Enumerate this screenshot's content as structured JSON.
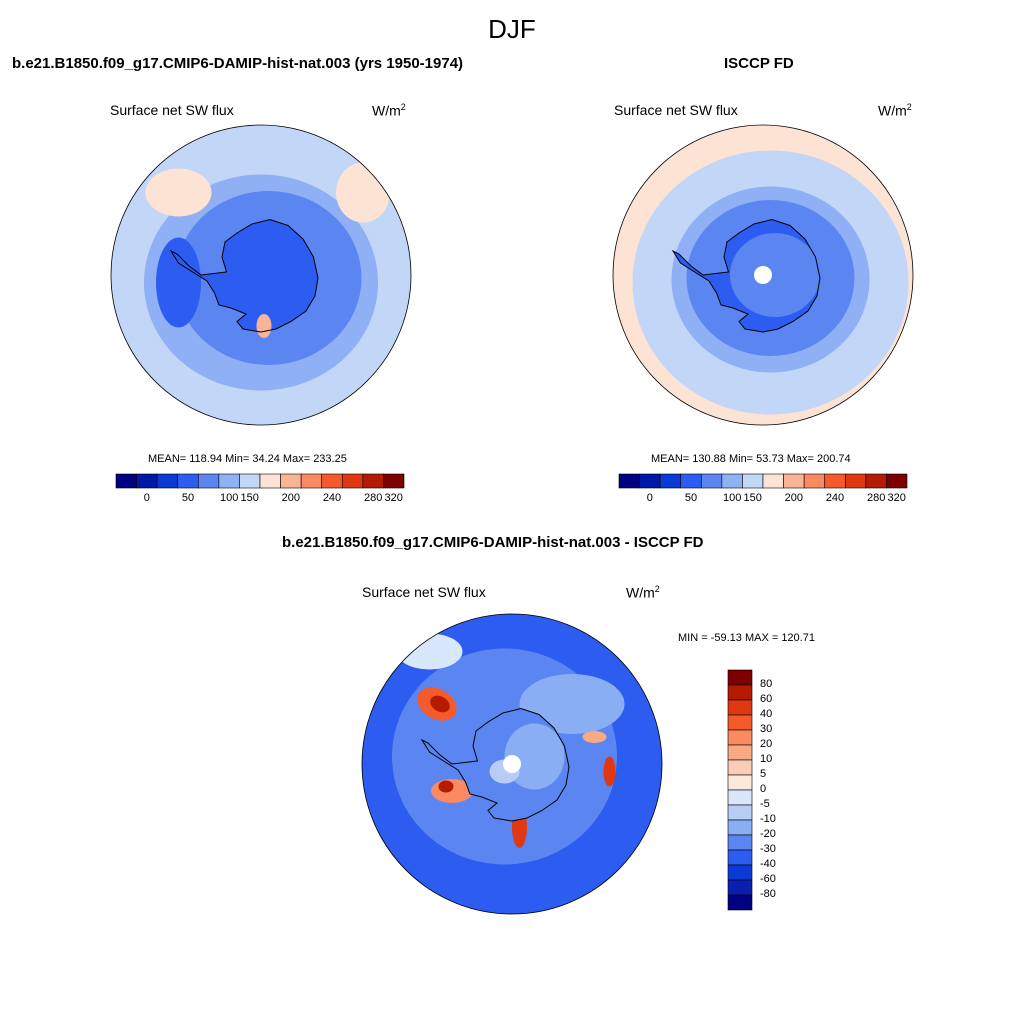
{
  "title": "DJF",
  "chart_data": [
    {
      "type": "heatmap",
      "projection": "south-polar-stereographic",
      "title": "b.e21.B1850.f09_g17.CMIP6-DAMIP-hist-nat.003 (yrs 1950-1974)",
      "variable": "Surface net SW flux",
      "units": "W/m",
      "units_exp": "2",
      "stats": {
        "mean": 118.94,
        "min": 34.24,
        "max": 233.25
      },
      "stats_text": "MEAN= 118.94  Min=  34.24  Max= 233.25",
      "colorbar_ticks": [
        "0",
        "50",
        "100",
        "150",
        "200",
        "240",
        "280",
        "320"
      ],
      "legend": "bottom-horizontal"
    },
    {
      "type": "heatmap",
      "projection": "south-polar-stereographic",
      "title": "ISCCP FD",
      "variable": "Surface net SW flux",
      "units": "W/m",
      "units_exp": "2",
      "stats": {
        "mean": 130.88,
        "min": 53.73,
        "max": 200.74
      },
      "stats_text": "MEAN= 130.88  Min=  53.73  Max= 200.74",
      "colorbar_ticks": [
        "0",
        "50",
        "100",
        "150",
        "200",
        "240",
        "280",
        "320"
      ],
      "legend": "bottom-horizontal"
    },
    {
      "type": "heatmap",
      "projection": "south-polar-stereographic",
      "title": "b.e21.B1850.f09_g17.CMIP6-DAMIP-hist-nat.003 - ISCCP FD",
      "variable": "Surface net SW flux",
      "units": "W/m",
      "units_exp": "2",
      "stats": {
        "min": -59.13,
        "max": 120.71
      },
      "stats_text": "MIN = -59.13 MAX = 120.71",
      "colorbar_ticks": [
        "80",
        "60",
        "40",
        "30",
        "20",
        "10",
        "5",
        "0",
        "-5",
        "-10",
        "-20",
        "-30",
        "-40",
        "-60",
        "-80"
      ],
      "legend": "right-vertical"
    }
  ],
  "colors": {
    "abs_scale": [
      "#000080",
      "#0018a8",
      "#0a3ad6",
      "#2c5cf0",
      "#5b86f2",
      "#8fb0f5",
      "#c2d6f8",
      "#fde3d3",
      "#f9b496",
      "#f98a62",
      "#f45a2b",
      "#e03810",
      "#b51b03",
      "#7d0000"
    ],
    "diff_scale": [
      "#7d0000",
      "#b51b03",
      "#e03810",
      "#f45a2b",
      "#f98a62",
      "#f9a983",
      "#fbcdb5",
      "#fde8dc",
      "#d9e7fb",
      "#b8cdf6",
      "#8aaef3",
      "#5b86f2",
      "#2c5cf0",
      "#0a3ad6",
      "#0a1fb0",
      "#000080"
    ],
    "coastline": "#000000",
    "pole_hole": "#ffffff"
  }
}
